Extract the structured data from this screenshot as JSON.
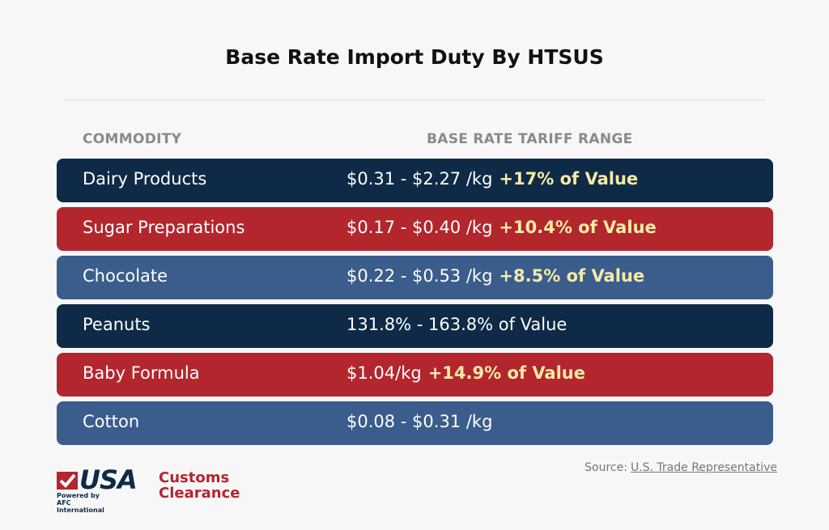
{
  "header": {
    "title": "Base Rate Import Duty By HTSUS"
  },
  "table": {
    "columns": [
      "COMMODITY",
      "BASE RATE TARIFF RANGE"
    ],
    "rows": [
      {
        "commodity": "Dairy Products",
        "rate": "$0.31 - $2.27 /kg",
        "extra": "+17% of Value",
        "color": "#0e2a47"
      },
      {
        "commodity": "Sugar Preparations",
        "rate": "$0.17 - $0.40 /kg",
        "extra": "+10.4% of Value",
        "color": "#b3262e"
      },
      {
        "commodity": "Chocolate",
        "rate": "$0.22 - $0.53 /kg",
        "extra": "+8.5% of Value",
        "color": "#3a5d8b"
      },
      {
        "commodity": "Peanuts",
        "rate": "131.8% - 163.8% of Value",
        "color": "#0e2a47"
      },
      {
        "commodity": "Baby Formula",
        "rate": "$1.04/kg",
        "extra": "+14.9% of Value",
        "color": "#b3262e"
      },
      {
        "commodity": "Cotton",
        "rate": "$0.08 - $0.31 /kg",
        "color": "#3a5d8b"
      }
    ]
  },
  "footer": {
    "logo": {
      "brand": "USA",
      "line1": "Customs",
      "line2": "Clearance",
      "tagline": "Powered by AFC International"
    },
    "source_label": "Source:",
    "source_link": "U.S. Trade Representative"
  }
}
